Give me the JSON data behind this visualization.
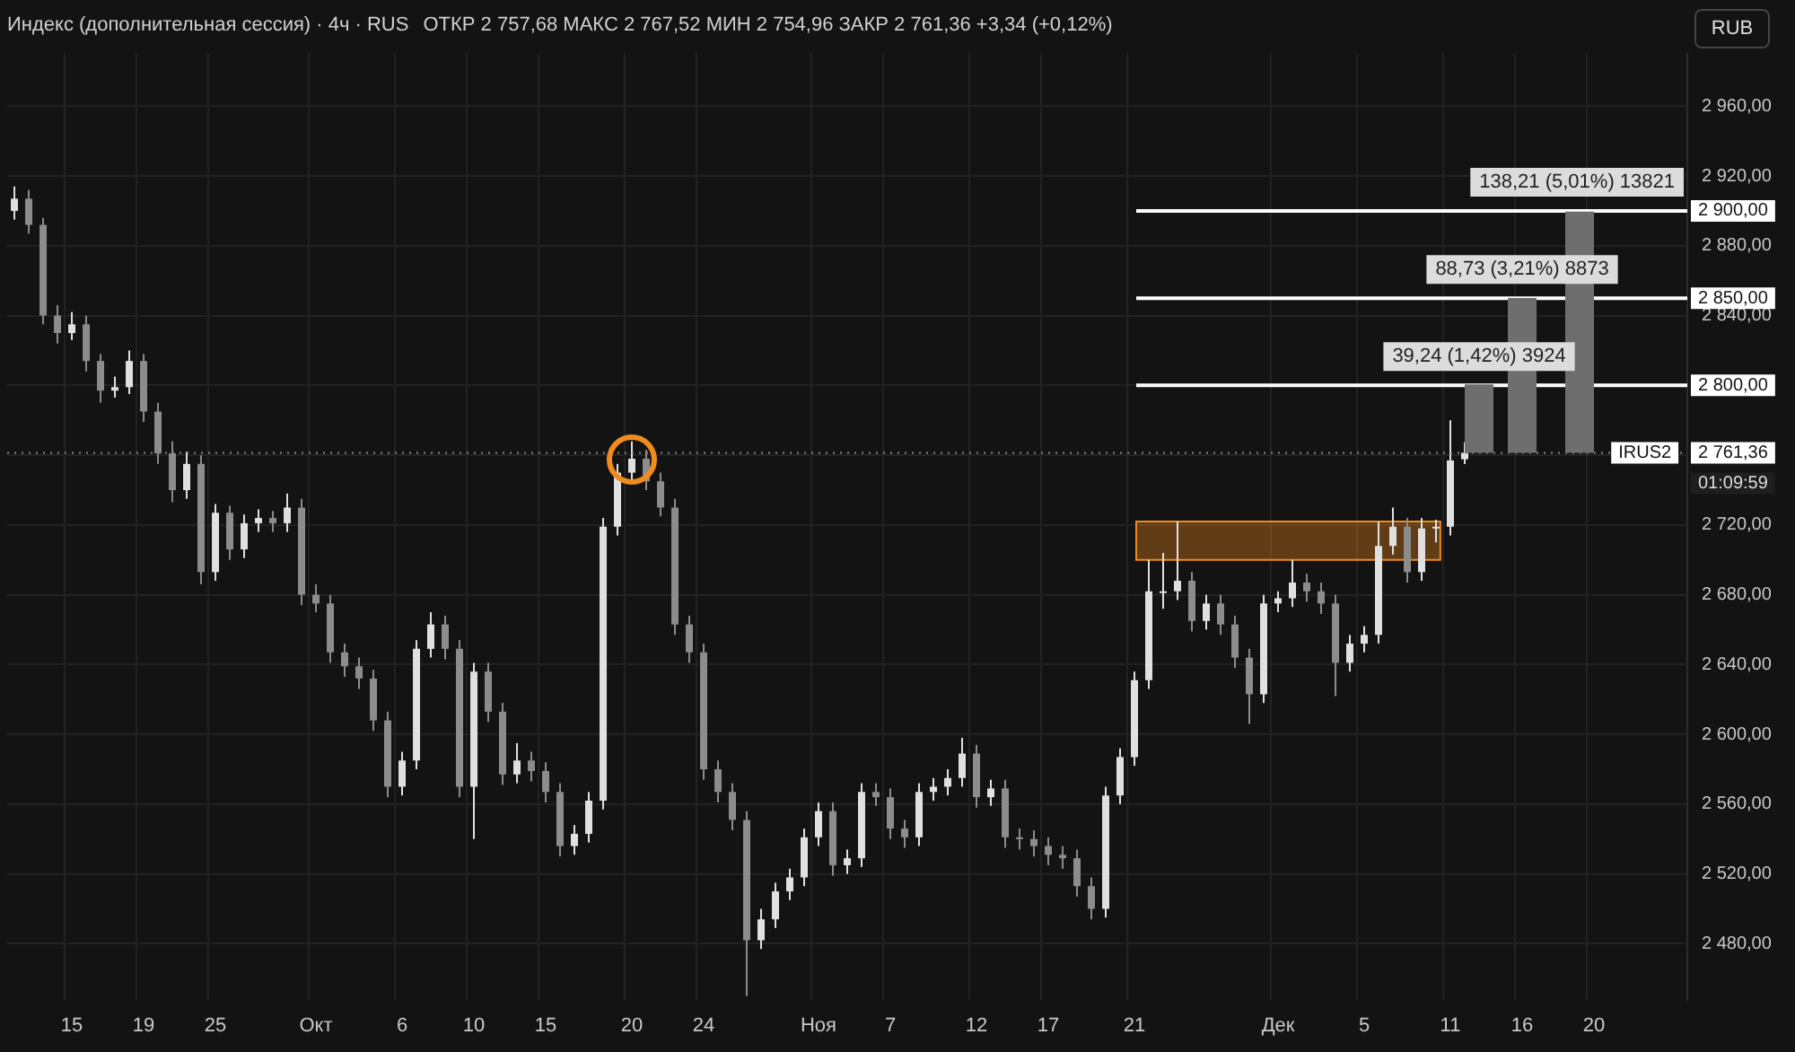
{
  "chart_data": {
    "type": "candlestick",
    "title": "Индекс (дополнительная сессия) · 4ч · RUS",
    "subtitle": "ОТКР 2 757,68  МАКС 2 767,52  МИН 2 754,96  ЗАКР 2 761,36  +3,34 (+0,12%)",
    "categories": [
      null,
      null,
      null,
      null,
      "15",
      null,
      null,
      null,
      null,
      "19",
      null,
      null,
      null,
      null,
      "25",
      null,
      null,
      null,
      null,
      null,
      null,
      "Окт",
      null,
      null,
      null,
      null,
      null,
      "6",
      null,
      null,
      null,
      null,
      "10",
      null,
      null,
      null,
      null,
      "15",
      null,
      null,
      null,
      null,
      null,
      "20",
      null,
      null,
      null,
      null,
      "24",
      null,
      null,
      null,
      null,
      null,
      null,
      null,
      "Ноя",
      null,
      null,
      null,
      null,
      "7",
      null,
      null,
      null,
      null,
      null,
      "12",
      null,
      null,
      null,
      null,
      "17",
      null,
      null,
      null,
      null,
      null,
      "21",
      null,
      null,
      null,
      null,
      null,
      null,
      null,
      null,
      null,
      "Дек",
      null,
      null,
      null,
      null,
      null,
      "5",
      null,
      null,
      null,
      null,
      null,
      "11",
      null,
      null,
      null,
      null,
      "16",
      null,
      null,
      null,
      null,
      "20",
      null,
      null,
      null,
      null,
      null,
      null
    ],
    "ohlc": [
      [
        2900,
        2914,
        2895,
        2907
      ],
      [
        2907,
        2912,
        2887,
        2892
      ],
      [
        2892,
        2896,
        2835,
        2840
      ],
      [
        2840,
        2846,
        2824,
        2830
      ],
      [
        2830,
        2842,
        2826,
        2835
      ],
      [
        2835,
        2840,
        2808,
        2814
      ],
      [
        2814,
        2818,
        2790,
        2797
      ],
      [
        2797,
        2805,
        2793,
        2799
      ],
      [
        2799,
        2820,
        2795,
        2814
      ],
      [
        2814,
        2818,
        2779,
        2785
      ],
      [
        2785,
        2790,
        2755,
        2761
      ],
      [
        2761,
        2768,
        2733,
        2740
      ],
      [
        2740,
        2762,
        2735,
        2755
      ],
      [
        2755,
        2760,
        2686,
        2693
      ],
      [
        2693,
        2732,
        2688,
        2727
      ],
      [
        2727,
        2731,
        2700,
        2706
      ],
      [
        2706,
        2726,
        2701,
        2721
      ],
      [
        2721,
        2729,
        2716,
        2724
      ],
      [
        2724,
        2728,
        2716,
        2721
      ],
      [
        2721,
        2738,
        2716,
        2730
      ],
      [
        2730,
        2735,
        2674,
        2680
      ],
      [
        2680,
        2686,
        2670,
        2675
      ],
      [
        2675,
        2680,
        2641,
        2647
      ],
      [
        2647,
        2652,
        2633,
        2639
      ],
      [
        2639,
        2644,
        2626,
        2632
      ],
      [
        2632,
        2637,
        2602,
        2608
      ],
      [
        2608,
        2613,
        2564,
        2570
      ],
      [
        2570,
        2590,
        2565,
        2585
      ],
      [
        2585,
        2654,
        2580,
        2649
      ],
      [
        2649,
        2670,
        2644,
        2663
      ],
      [
        2663,
        2668,
        2643,
        2649
      ],
      [
        2649,
        2654,
        2564,
        2570
      ],
      [
        2570,
        2641,
        2540,
        2636
      ],
      [
        2636,
        2641,
        2607,
        2613
      ],
      [
        2613,
        2618,
        2571,
        2577
      ],
      [
        2577,
        2595,
        2572,
        2585
      ],
      [
        2585,
        2590,
        2573,
        2579
      ],
      [
        2579,
        2584,
        2561,
        2567
      ],
      [
        2567,
        2572,
        2530,
        2536
      ],
      [
        2536,
        2548,
        2531,
        2543
      ],
      [
        2543,
        2567,
        2538,
        2562
      ],
      [
        2562,
        2724,
        2557,
        2719
      ],
      [
        2719,
        2755,
        2714,
        2750
      ],
      [
        2750,
        2768,
        2745,
        2758
      ],
      [
        2758,
        2763,
        2740,
        2745
      ],
      [
        2745,
        2750,
        2725,
        2730
      ],
      [
        2730,
        2735,
        2657,
        2663
      ],
      [
        2663,
        2668,
        2641,
        2647
      ],
      [
        2647,
        2652,
        2574,
        2580
      ],
      [
        2580,
        2585,
        2561,
        2567
      ],
      [
        2567,
        2572,
        2545,
        2551
      ],
      [
        2551,
        2556,
        2450,
        2482
      ],
      [
        2482,
        2500,
        2477,
        2494
      ],
      [
        2494,
        2515,
        2489,
        2510
      ],
      [
        2510,
        2523,
        2505,
        2518
      ],
      [
        2518,
        2546,
        2513,
        2541
      ],
      [
        2541,
        2561,
        2536,
        2556
      ],
      [
        2556,
        2561,
        2519,
        2525
      ],
      [
        2525,
        2534,
        2520,
        2529
      ],
      [
        2529,
        2572,
        2524,
        2567
      ],
      [
        2567,
        2572,
        2559,
        2564
      ],
      [
        2564,
        2569,
        2540,
        2546
      ],
      [
        2546,
        2551,
        2535,
        2541
      ],
      [
        2541,
        2572,
        2536,
        2567
      ],
      [
        2567,
        2575,
        2562,
        2570
      ],
      [
        2570,
        2580,
        2565,
        2575
      ],
      [
        2575,
        2598,
        2570,
        2589
      ],
      [
        2589,
        2594,
        2558,
        2564
      ],
      [
        2564,
        2574,
        2559,
        2569
      ],
      [
        2569,
        2574,
        2535,
        2541
      ],
      [
        2541,
        2546,
        2534,
        2540
      ],
      [
        2540,
        2545,
        2530,
        2536
      ],
      [
        2536,
        2541,
        2525,
        2531
      ],
      [
        2531,
        2536,
        2523,
        2529
      ],
      [
        2529,
        2534,
        2507,
        2513
      ],
      [
        2513,
        2518,
        2494,
        2500
      ],
      [
        2500,
        2570,
        2495,
        2565
      ],
      [
        2565,
        2592,
        2560,
        2587
      ],
      [
        2587,
        2636,
        2582,
        2631
      ],
      [
        2631,
        2700,
        2626,
        2682
      ],
      [
        2682,
        2704,
        2672,
        2682
      ],
      [
        2682,
        2722,
        2677,
        2688
      ],
      [
        2688,
        2693,
        2659,
        2665
      ],
      [
        2665,
        2680,
        2660,
        2675
      ],
      [
        2675,
        2680,
        2657,
        2663
      ],
      [
        2663,
        2668,
        2638,
        2644
      ],
      [
        2644,
        2649,
        2606,
        2623
      ],
      [
        2623,
        2680,
        2618,
        2675
      ],
      [
        2675,
        2682,
        2670,
        2678
      ],
      [
        2678,
        2700,
        2673,
        2687
      ],
      [
        2687,
        2692,
        2676,
        2682
      ],
      [
        2682,
        2687,
        2669,
        2675
      ],
      [
        2675,
        2680,
        2622,
        2641
      ],
      [
        2641,
        2657,
        2636,
        2652
      ],
      [
        2652,
        2662,
        2647,
        2657
      ],
      [
        2657,
        2722,
        2652,
        2708
      ],
      [
        2708,
        2730,
        2703,
        2719
      ],
      [
        2719,
        2724,
        2687,
        2693
      ],
      [
        2693,
        2724,
        2688,
        2718
      ],
      [
        2718,
        2723,
        2710,
        2719
      ],
      [
        2719,
        2780,
        2714,
        2757
      ],
      [
        2757.68,
        2767.52,
        2754.96,
        2761.36
      ],
      null,
      null,
      null,
      null,
      null,
      null,
      null,
      null,
      null,
      null,
      null,
      null,
      null,
      null,
      null
    ],
    "colors": [
      "#e0e0e0",
      "#8c8c8c",
      "#8c8c8c",
      "#8c8c8c",
      "#e0e0e0",
      "#8c8c8c",
      "#8c8c8c",
      "#e0e0e0",
      "#e0e0e0",
      "#8c8c8c",
      "#8c8c8c",
      "#8c8c8c",
      "#e0e0e0",
      "#8c8c8c",
      "#e0e0e0",
      "#8c8c8c",
      "#e0e0e0",
      "#e0e0e0",
      "#8c8c8c",
      "#e0e0e0",
      "#8c8c8c",
      "#8c8c8c",
      "#8c8c8c",
      "#8c8c8c",
      "#8c8c8c",
      "#8c8c8c",
      "#8c8c8c",
      "#e0e0e0",
      "#e0e0e0",
      "#e0e0e0",
      "#8c8c8c",
      "#8c8c8c",
      "#e0e0e0",
      "#8c8c8c",
      "#8c8c8c",
      "#e0e0e0",
      "#8c8c8c",
      "#8c8c8c",
      "#8c8c8c",
      "#e0e0e0",
      "#e0e0e0",
      "#e0e0e0",
      "#e0e0e0",
      "#e0e0e0",
      "#8c8c8c",
      "#8c8c8c",
      "#8c8c8c",
      "#8c8c8c",
      "#8c8c8c",
      "#8c8c8c",
      "#8c8c8c",
      "#8c8c8c",
      "#e0e0e0",
      "#e0e0e0",
      "#e0e0e0",
      "#e0e0e0",
      "#e0e0e0",
      "#8c8c8c",
      "#e0e0e0",
      "#e0e0e0",
      "#8c8c8c",
      "#8c8c8c",
      "#8c8c8c",
      "#e0e0e0",
      "#e0e0e0",
      "#e0e0e0",
      "#e0e0e0",
      "#8c8c8c",
      "#e0e0e0",
      "#8c8c8c",
      "#8c8c8c",
      "#8c8c8c",
      "#8c8c8c",
      "#8c8c8c",
      "#8c8c8c",
      "#8c8c8c",
      "#e0e0e0",
      "#e0e0e0",
      "#e0e0e0",
      "#e0e0e0",
      "#e0e0e0",
      "#e0e0e0",
      "#8c8c8c",
      "#e0e0e0",
      "#8c8c8c",
      "#8c8c8c",
      "#8c8c8c",
      "#e0e0e0",
      "#e0e0e0",
      "#e0e0e0",
      "#8c8c8c",
      "#8c8c8c",
      "#8c8c8c",
      "#e0e0e0",
      "#e0e0e0",
      "#e0e0e0",
      "#e0e0e0",
      "#8c8c8c",
      "#e0e0e0",
      "#e0e0e0",
      "#e0e0e0",
      "#e0e0e0",
      null,
      null,
      null,
      null,
      null,
      null,
      null,
      null,
      null,
      null,
      null,
      null,
      null,
      null,
      null
    ],
    "series": [
      {
        "type": "bar",
        "color": "#6e6e6e",
        "base": [
          null,
          null,
          null,
          null,
          null,
          null,
          null,
          null,
          null,
          null,
          null,
          null,
          null,
          null,
          null,
          null,
          null,
          null,
          null,
          null,
          null,
          null,
          null,
          null,
          null,
          null,
          null,
          null,
          null,
          null,
          null,
          null,
          null,
          null,
          null,
          null,
          null,
          null,
          null,
          null,
          null,
          null,
          null,
          null,
          null,
          null,
          null,
          null,
          null,
          null,
          null,
          null,
          null,
          null,
          null,
          null,
          null,
          null,
          null,
          null,
          null,
          null,
          null,
          null,
          null,
          null,
          null,
          null,
          null,
          null,
          null,
          null,
          null,
          null,
          null,
          null,
          null,
          null,
          null,
          null,
          null,
          null,
          null,
          null,
          null,
          null,
          null,
          null,
          null,
          null,
          null,
          null,
          null,
          null,
          null,
          null,
          null,
          null,
          null,
          null,
          null,
          null,
          2761.36,
          null,
          null,
          2761.36,
          null,
          null,
          null,
          2761.36,
          null,
          null,
          null,
          null,
          null,
          null,
          null
        ],
        "values": [
          null,
          null,
          null,
          null,
          null,
          null,
          null,
          null,
          null,
          null,
          null,
          null,
          null,
          null,
          null,
          null,
          null,
          null,
          null,
          null,
          null,
          null,
          null,
          null,
          null,
          null,
          null,
          null,
          null,
          null,
          null,
          null,
          null,
          null,
          null,
          null,
          null,
          null,
          null,
          null,
          null,
          null,
          null,
          null,
          null,
          null,
          null,
          null,
          null,
          null,
          null,
          null,
          null,
          null,
          null,
          null,
          null,
          null,
          null,
          null,
          null,
          null,
          null,
          null,
          null,
          null,
          null,
          null,
          null,
          null,
          null,
          null,
          null,
          null,
          null,
          null,
          null,
          null,
          null,
          null,
          null,
          null,
          null,
          null,
          null,
          null,
          null,
          null,
          null,
          null,
          null,
          null,
          null,
          null,
          null,
          null,
          null,
          null,
          null,
          null,
          null,
          null,
          39.24,
          null,
          null,
          88.73,
          null,
          null,
          null,
          138.21,
          null,
          null,
          null,
          null,
          null,
          null,
          null
        ]
      }
    ],
    "ylim": [
      2448,
      2990
    ],
    "yticks": [
      {
        "value": 2480,
        "label": "2 480,00"
      },
      {
        "value": 2520,
        "label": "2 520,00"
      },
      {
        "value": 2560,
        "label": "2 560,00"
      },
      {
        "value": 2600,
        "label": "2 600,00"
      },
      {
        "value": 2640,
        "label": "2 640,00"
      },
      {
        "value": 2680,
        "label": "2 680,00"
      },
      {
        "value": 2720,
        "label": "2 720,00"
      },
      {
        "value": 2760,
        "label": null
      },
      {
        "value": 2800,
        "label": null
      },
      {
        "value": 2840,
        "label": "2 840,00"
      },
      {
        "value": 2880,
        "label": "2 880,00"
      },
      {
        "value": 2920,
        "label": "2 920,00"
      },
      {
        "value": 2960,
        "label": "2 960,00"
      }
    ],
    "ref_lines": [
      {
        "axis": "y",
        "value": 2800,
        "label": "2 800,00",
        "color": "#ffffff",
        "line_style": "solid"
      },
      {
        "axis": "y",
        "value": 2850,
        "label": "2 850,00",
        "color": "#ffffff",
        "line_style": "solid"
      },
      {
        "axis": "y",
        "value": 2900,
        "label": "2 900,00",
        "color": "#ffffff",
        "line_style": "solid"
      },
      {
        "axis": "y",
        "value": 2761.36,
        "label": "2 761,36",
        "color": "#8c8c8c",
        "line_style": "dotted"
      }
    ],
    "bands": [
      {
        "axis": "y",
        "from": 2700,
        "to": 2722,
        "color": "#f08c1e"
      }
    ],
    "annotations": [
      "RUB",
      {
        "text": "39,24 (1,42%) 3924",
        "y": 2800
      },
      {
        "text": "88,73 (3,21%) 8873",
        "y": 2850
      },
      {
        "text": "138,21 (5,01%) 13821",
        "y": 2900
      },
      "IRUS2",
      "01:09:59"
    ],
    "grid": true,
    "legend": false
  }
}
